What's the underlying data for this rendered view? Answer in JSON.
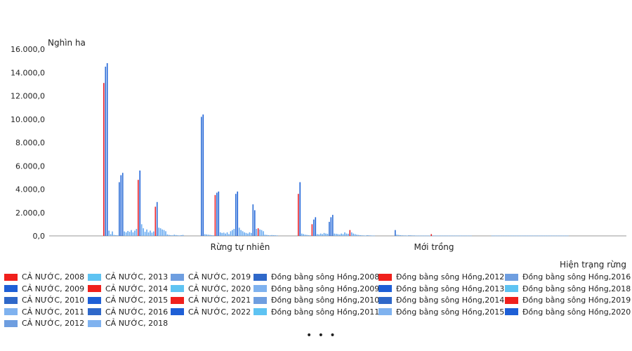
{
  "chart_data": {
    "type": "bar",
    "unit_label": "Nghìn ha",
    "xlabel": "Hiện trạng rừng",
    "ylim": [
      0,
      16000
    ],
    "yticks": [
      "0,0",
      "2.000,0",
      "4.000,0",
      "6.000,0",
      "8.000,0",
      "10.000,0",
      "12.000,0",
      "14.000,0",
      "16.000,0"
    ],
    "categories": [
      "Rừng tự nhiên",
      "Mới trồng"
    ],
    "groups": [
      {
        "category": "Rừng tự nhiên",
        "bars": [
          {
            "v": 13100,
            "c": "#e8222a"
          },
          {
            "v": 14500,
            "c": "#2d6ed6"
          },
          {
            "v": 14800,
            "c": "#1e63d8"
          },
          {
            "v": 450,
            "c": "#64a8f0"
          },
          {
            "v": 150,
            "c": "#64a8f0"
          },
          {
            "v": 380,
            "c": "#64a8f0"
          },
          {
            "v": 80,
            "c": "#64a8f0"
          },
          {
            "v": 60,
            "c": "#64a8f0"
          },
          {
            "v": 50,
            "c": "#64a8f0"
          },
          {
            "v": 4600,
            "c": "#2d6ed6"
          },
          {
            "v": 5200,
            "c": "#1e63d8"
          },
          {
            "v": 5400,
            "c": "#2d6ed6"
          },
          {
            "v": 380,
            "c": "#64a8f0"
          },
          {
            "v": 300,
            "c": "#64a8f0"
          },
          {
            "v": 420,
            "c": "#64a8f0"
          },
          {
            "v": 350,
            "c": "#64a8f0"
          },
          {
            "v": 500,
            "c": "#64a8f0"
          },
          {
            "v": 300,
            "c": "#64a8f0"
          },
          {
            "v": 450,
            "c": "#64a8f0"
          },
          {
            "v": 600,
            "c": "#64a8f0"
          },
          {
            "v": 4800,
            "c": "#e8222a"
          },
          {
            "v": 5600,
            "c": "#1e63d8"
          },
          {
            "v": 1000,
            "c": "#64a8f0"
          },
          {
            "v": 650,
            "c": "#64a8f0"
          },
          {
            "v": 350,
            "c": "#64a8f0"
          },
          {
            "v": 550,
            "c": "#64a8f0"
          },
          {
            "v": 300,
            "c": "#64a8f0"
          },
          {
            "v": 450,
            "c": "#64a8f0"
          },
          {
            "v": 280,
            "c": "#64a8f0"
          },
          {
            "v": 380,
            "c": "#64a8f0"
          },
          {
            "v": 2500,
            "c": "#e8222a"
          },
          {
            "v": 2900,
            "c": "#2d6ed6"
          },
          {
            "v": 700,
            "c": "#64a8f0"
          },
          {
            "v": 650,
            "c": "#64a8f0"
          },
          {
            "v": 550,
            "c": "#64a8f0"
          },
          {
            "v": 500,
            "c": "#64a8f0"
          },
          {
            "v": 400,
            "c": "#64a8f0"
          },
          {
            "v": 120,
            "c": "#64a8f0"
          },
          {
            "v": 80,
            "c": "#64a8f0"
          },
          {
            "v": 60,
            "c": "#64a8f0"
          },
          {
            "v": 50,
            "c": "#64a8f0"
          },
          {
            "v": 100,
            "c": "#64a8f0"
          },
          {
            "v": 70,
            "c": "#64a8f0"
          },
          {
            "v": 50,
            "c": "#64a8f0"
          },
          {
            "v": 40,
            "c": "#64a8f0"
          },
          {
            "v": 60,
            "c": "#64a8f0"
          },
          {
            "v": 80,
            "c": "#64a8f0"
          }
        ]
      },
      {
        "category": "Rừng tự nhiên",
        "bars": [
          {
            "v": 10200,
            "c": "#2d6ed6"
          },
          {
            "v": 10400,
            "c": "#1e63d8"
          },
          {
            "v": 150,
            "c": "#64a8f0"
          },
          {
            "v": 120,
            "c": "#64a8f0"
          },
          {
            "v": 100,
            "c": "#64a8f0"
          },
          {
            "v": 80,
            "c": "#64a8f0"
          },
          {
            "v": 60,
            "c": "#64a8f0"
          },
          {
            "v": 50,
            "c": "#64a8f0"
          },
          {
            "v": 3500,
            "c": "#e8222a"
          },
          {
            "v": 3700,
            "c": "#2d6ed6"
          },
          {
            "v": 3800,
            "c": "#1e63d8"
          },
          {
            "v": 300,
            "c": "#64a8f0"
          },
          {
            "v": 250,
            "c": "#64a8f0"
          },
          {
            "v": 280,
            "c": "#64a8f0"
          },
          {
            "v": 200,
            "c": "#64a8f0"
          },
          {
            "v": 300,
            "c": "#64a8f0"
          },
          {
            "v": 150,
            "c": "#64a8f0"
          },
          {
            "v": 400,
            "c": "#64a8f0"
          },
          {
            "v": 500,
            "c": "#64a8f0"
          },
          {
            "v": 600,
            "c": "#64a8f0"
          },
          {
            "v": 3600,
            "c": "#2d6ed6"
          },
          {
            "v": 3800,
            "c": "#1e63d8"
          },
          {
            "v": 700,
            "c": "#64a8f0"
          },
          {
            "v": 500,
            "c": "#64a8f0"
          },
          {
            "v": 400,
            "c": "#64a8f0"
          },
          {
            "v": 300,
            "c": "#64a8f0"
          },
          {
            "v": 250,
            "c": "#64a8f0"
          },
          {
            "v": 200,
            "c": "#64a8f0"
          },
          {
            "v": 300,
            "c": "#64a8f0"
          },
          {
            "v": 250,
            "c": "#64a8f0"
          },
          {
            "v": 2700,
            "c": "#2d6ed6"
          },
          {
            "v": 2200,
            "c": "#1e63d8"
          },
          {
            "v": 600,
            "c": "#64a8f0"
          },
          {
            "v": 650,
            "c": "#e8222a"
          },
          {
            "v": 550,
            "c": "#64a8f0"
          },
          {
            "v": 500,
            "c": "#64a8f0"
          },
          {
            "v": 400,
            "c": "#64a8f0"
          },
          {
            "v": 100,
            "c": "#64a8f0"
          },
          {
            "v": 80,
            "c": "#64a8f0"
          },
          {
            "v": 60,
            "c": "#64a8f0"
          },
          {
            "v": 50,
            "c": "#64a8f0"
          },
          {
            "v": 70,
            "c": "#64a8f0"
          },
          {
            "v": 60,
            "c": "#64a8f0"
          },
          {
            "v": 50,
            "c": "#64a8f0"
          },
          {
            "v": 40,
            "c": "#64a8f0"
          }
        ]
      },
      {
        "category": "Mới trồng",
        "bars": [
          {
            "v": 3600,
            "c": "#e8222a"
          },
          {
            "v": 4600,
            "c": "#1e63d8"
          },
          {
            "v": 200,
            "c": "#64a8f0"
          },
          {
            "v": 150,
            "c": "#64a8f0"
          },
          {
            "v": 100,
            "c": "#64a8f0"
          },
          {
            "v": 80,
            "c": "#64a8f0"
          },
          {
            "v": 60,
            "c": "#64a8f0"
          },
          {
            "v": 50,
            "c": "#64a8f0"
          },
          {
            "v": 1000,
            "c": "#e8222a"
          },
          {
            "v": 1400,
            "c": "#2d6ed6"
          },
          {
            "v": 1600,
            "c": "#1e63d8"
          },
          {
            "v": 150,
            "c": "#64a8f0"
          },
          {
            "v": 120,
            "c": "#64a8f0"
          },
          {
            "v": 200,
            "c": "#64a8f0"
          },
          {
            "v": 150,
            "c": "#64a8f0"
          },
          {
            "v": 250,
            "c": "#64a8f0"
          },
          {
            "v": 200,
            "c": "#64a8f0"
          },
          {
            "v": 180,
            "c": "#64a8f0"
          },
          {
            "v": 1200,
            "c": "#2d6ed6"
          },
          {
            "v": 1600,
            "c": "#1e63d8"
          },
          {
            "v": 1800,
            "c": "#2d6ed6"
          },
          {
            "v": 200,
            "c": "#64a8f0"
          },
          {
            "v": 180,
            "c": "#64a8f0"
          },
          {
            "v": 150,
            "c": "#64a8f0"
          },
          {
            "v": 120,
            "c": "#64a8f0"
          },
          {
            "v": 200,
            "c": "#64a8f0"
          },
          {
            "v": 150,
            "c": "#64a8f0"
          },
          {
            "v": 300,
            "c": "#64a8f0"
          },
          {
            "v": 200,
            "c": "#64a8f0"
          },
          {
            "v": 180,
            "c": "#64a8f0"
          },
          {
            "v": 500,
            "c": "#e8222a"
          },
          {
            "v": 300,
            "c": "#64a8f0"
          },
          {
            "v": 200,
            "c": "#64a8f0"
          },
          {
            "v": 150,
            "c": "#64a8f0"
          },
          {
            "v": 100,
            "c": "#64a8f0"
          },
          {
            "v": 80,
            "c": "#64a8f0"
          },
          {
            "v": 60,
            "c": "#64a8f0"
          },
          {
            "v": 50,
            "c": "#64a8f0"
          },
          {
            "v": 40,
            "c": "#64a8f0"
          },
          {
            "v": 30,
            "c": "#64a8f0"
          },
          {
            "v": 60,
            "c": "#64a8f0"
          },
          {
            "v": 50,
            "c": "#64a8f0"
          },
          {
            "v": 40,
            "c": "#64a8f0"
          },
          {
            "v": 30,
            "c": "#64a8f0"
          },
          {
            "v": 30,
            "c": "#64a8f0"
          }
        ]
      },
      {
        "category": "Mới trồng",
        "bars": [
          {
            "v": 500,
            "c": "#2d6ed6"
          },
          {
            "v": 100,
            "c": "#64a8f0"
          },
          {
            "v": 80,
            "c": "#64a8f0"
          },
          {
            "v": 60,
            "c": "#64a8f0"
          },
          {
            "v": 50,
            "c": "#64a8f0"
          },
          {
            "v": 40,
            "c": "#64a8f0"
          },
          {
            "v": 40,
            "c": "#64a8f0"
          },
          {
            "v": 30,
            "c": "#64a8f0"
          },
          {
            "v": 60,
            "c": "#64a8f0"
          },
          {
            "v": 50,
            "c": "#64a8f0"
          },
          {
            "v": 40,
            "c": "#64a8f0"
          },
          {
            "v": 40,
            "c": "#64a8f0"
          },
          {
            "v": 30,
            "c": "#64a8f0"
          },
          {
            "v": 30,
            "c": "#64a8f0"
          },
          {
            "v": 30,
            "c": "#64a8f0"
          },
          {
            "v": 30,
            "c": "#64a8f0"
          },
          {
            "v": 30,
            "c": "#64a8f0"
          },
          {
            "v": 30,
            "c": "#64a8f0"
          },
          {
            "v": 30,
            "c": "#64a8f0"
          },
          {
            "v": 30,
            "c": "#64a8f0"
          },
          {
            "v": 30,
            "c": "#64a8f0"
          },
          {
            "v": 150,
            "c": "#e8222a"
          },
          {
            "v": 30,
            "c": "#64a8f0"
          },
          {
            "v": 30,
            "c": "#64a8f0"
          },
          {
            "v": 30,
            "c": "#64a8f0"
          },
          {
            "v": 30,
            "c": "#64a8f0"
          },
          {
            "v": 30,
            "c": "#64a8f0"
          },
          {
            "v": 30,
            "c": "#64a8f0"
          },
          {
            "v": 30,
            "c": "#64a8f0"
          },
          {
            "v": 30,
            "c": "#64a8f0"
          },
          {
            "v": 30,
            "c": "#64a8f0"
          },
          {
            "v": 30,
            "c": "#64a8f0"
          },
          {
            "v": 30,
            "c": "#64a8f0"
          },
          {
            "v": 30,
            "c": "#64a8f0"
          },
          {
            "v": 30,
            "c": "#64a8f0"
          },
          {
            "v": 30,
            "c": "#64a8f0"
          },
          {
            "v": 30,
            "c": "#64a8f0"
          },
          {
            "v": 30,
            "c": "#64a8f0"
          },
          {
            "v": 30,
            "c": "#64a8f0"
          },
          {
            "v": 30,
            "c": "#64a8f0"
          },
          {
            "v": 30,
            "c": "#64a8f0"
          },
          {
            "v": 30,
            "c": "#64a8f0"
          },
          {
            "v": 30,
            "c": "#64a8f0"
          },
          {
            "v": 30,
            "c": "#64a8f0"
          },
          {
            "v": 30,
            "c": "#64a8f0"
          }
        ]
      },
      {
        "category": "",
        "bars": [
          {
            "v": 30,
            "c": "#64a8f0"
          },
          {
            "v": 30,
            "c": "#64a8f0"
          },
          {
            "v": 30,
            "c": "#64a8f0"
          },
          {
            "v": 30,
            "c": "#64a8f0"
          },
          {
            "v": 30,
            "c": "#64a8f0"
          },
          {
            "v": 30,
            "c": "#64a8f0"
          },
          {
            "v": 30,
            "c": "#64a8f0"
          },
          {
            "v": 30,
            "c": "#64a8f0"
          },
          {
            "v": 30,
            "c": "#64a8f0"
          },
          {
            "v": 30,
            "c": "#64a8f0"
          },
          {
            "v": 30,
            "c": "#64a8f0"
          },
          {
            "v": 30,
            "c": "#64a8f0"
          },
          {
            "v": 30,
            "c": "#64a8f0"
          },
          {
            "v": 30,
            "c": "#64a8f0"
          },
          {
            "v": 30,
            "c": "#64a8f0"
          },
          {
            "v": 30,
            "c": "#64a8f0"
          },
          {
            "v": 30,
            "c": "#64a8f0"
          },
          {
            "v": 30,
            "c": "#64a8f0"
          },
          {
            "v": 30,
            "c": "#64a8f0"
          },
          {
            "v": 30,
            "c": "#64a8f0"
          },
          {
            "v": 30,
            "c": "#64a8f0"
          },
          {
            "v": 30,
            "c": "#64a8f0"
          },
          {
            "v": 30,
            "c": "#64a8f0"
          },
          {
            "v": 30,
            "c": "#64a8f0"
          },
          {
            "v": 30,
            "c": "#64a8f0"
          },
          {
            "v": 30,
            "c": "#64a8f0"
          },
          {
            "v": 30,
            "c": "#64a8f0"
          },
          {
            "v": 30,
            "c": "#64a8f0"
          },
          {
            "v": 30,
            "c": "#64a8f0"
          },
          {
            "v": 30,
            "c": "#64a8f0"
          },
          {
            "v": 30,
            "c": "#64a8f0"
          },
          {
            "v": 30,
            "c": "#64a8f0"
          },
          {
            "v": 30,
            "c": "#64a8f0"
          },
          {
            "v": 30,
            "c": "#64a8f0"
          },
          {
            "v": 30,
            "c": "#64a8f0"
          },
          {
            "v": 30,
            "c": "#64a8f0"
          },
          {
            "v": 30,
            "c": "#64a8f0"
          },
          {
            "v": 30,
            "c": "#64a8f0"
          },
          {
            "v": 30,
            "c": "#64a8f0"
          },
          {
            "v": 30,
            "c": "#64a8f0"
          },
          {
            "v": 30,
            "c": "#64a8f0"
          },
          {
            "v": 30,
            "c": "#64a8f0"
          },
          {
            "v": 30,
            "c": "#64a8f0"
          },
          {
            "v": 30,
            "c": "#64a8f0"
          },
          {
            "v": 30,
            "c": "#64a8f0"
          }
        ]
      }
    ],
    "legend": [
      {
        "label": "CẢ NƯỚC, 2008",
        "color": "#f0201c"
      },
      {
        "label": "CẢ NƯỚC, 2009",
        "color": "#1e5fd6"
      },
      {
        "label": "CẢ NƯỚC, 2010",
        "color": "#2f68c9"
      },
      {
        "label": "CẢ NƯỚC, 2011",
        "color": "#7fb2ef"
      },
      {
        "label": "CẢ NƯỚC, 2012",
        "color": "#6e9ee0"
      },
      {
        "label": "CẢ NƯỚC, 2013",
        "color": "#5ec3f2"
      },
      {
        "label": "CẢ NƯỚC, 2014",
        "color": "#f0201c"
      },
      {
        "label": "CẢ NƯỚC, 2015",
        "color": "#1e5fd6"
      },
      {
        "label": "CẢ NƯỚC, 2016",
        "color": "#2f68c9"
      },
      {
        "label": "CẢ NƯỚC, 2018",
        "color": "#7fb2ef"
      },
      {
        "label": "CẢ NƯỚC, 2019",
        "color": "#6e9ee0"
      },
      {
        "label": "CẢ NƯỚC, 2020",
        "color": "#5ec3f2"
      },
      {
        "label": "CẢ NƯỚC, 2021",
        "color": "#f0201c"
      },
      {
        "label": "CẢ NƯỚC, 2022",
        "color": "#1e5fd6"
      },
      {
        "label": "Đồng bằng sông Hồng,2008",
        "color": "#2f68c9"
      },
      {
        "label": "Đồng bằng sông Hồng,2009",
        "color": "#7fb2ef"
      },
      {
        "label": "Đồng bằng sông Hồng,2010",
        "color": "#6e9ee0"
      },
      {
        "label": "Đồng bằng sông Hồng,2011",
        "color": "#5ec3f2"
      },
      {
        "label": "Đồng bằng sông Hồng,2012",
        "color": "#f0201c"
      },
      {
        "label": "Đồng bằng sông Hồng,2013",
        "color": "#1e5fd6"
      },
      {
        "label": "Đồng bằng sông Hồng,2014",
        "color": "#2f68c9"
      },
      {
        "label": "Đồng bằng sông Hồng,2015",
        "color": "#7fb2ef"
      },
      {
        "label": "Đồng bằng sông Hồng,2016",
        "color": "#6e9ee0"
      },
      {
        "label": "Đồng bằng sông Hồng,2018",
        "color": "#5ec3f2"
      },
      {
        "label": "Đồng bằng sông Hồng,2019",
        "color": "#f0201c"
      },
      {
        "label": "Đồng bằng sông Hồng,2020",
        "color": "#1e5fd6"
      }
    ],
    "more_indicator": "• • •"
  }
}
